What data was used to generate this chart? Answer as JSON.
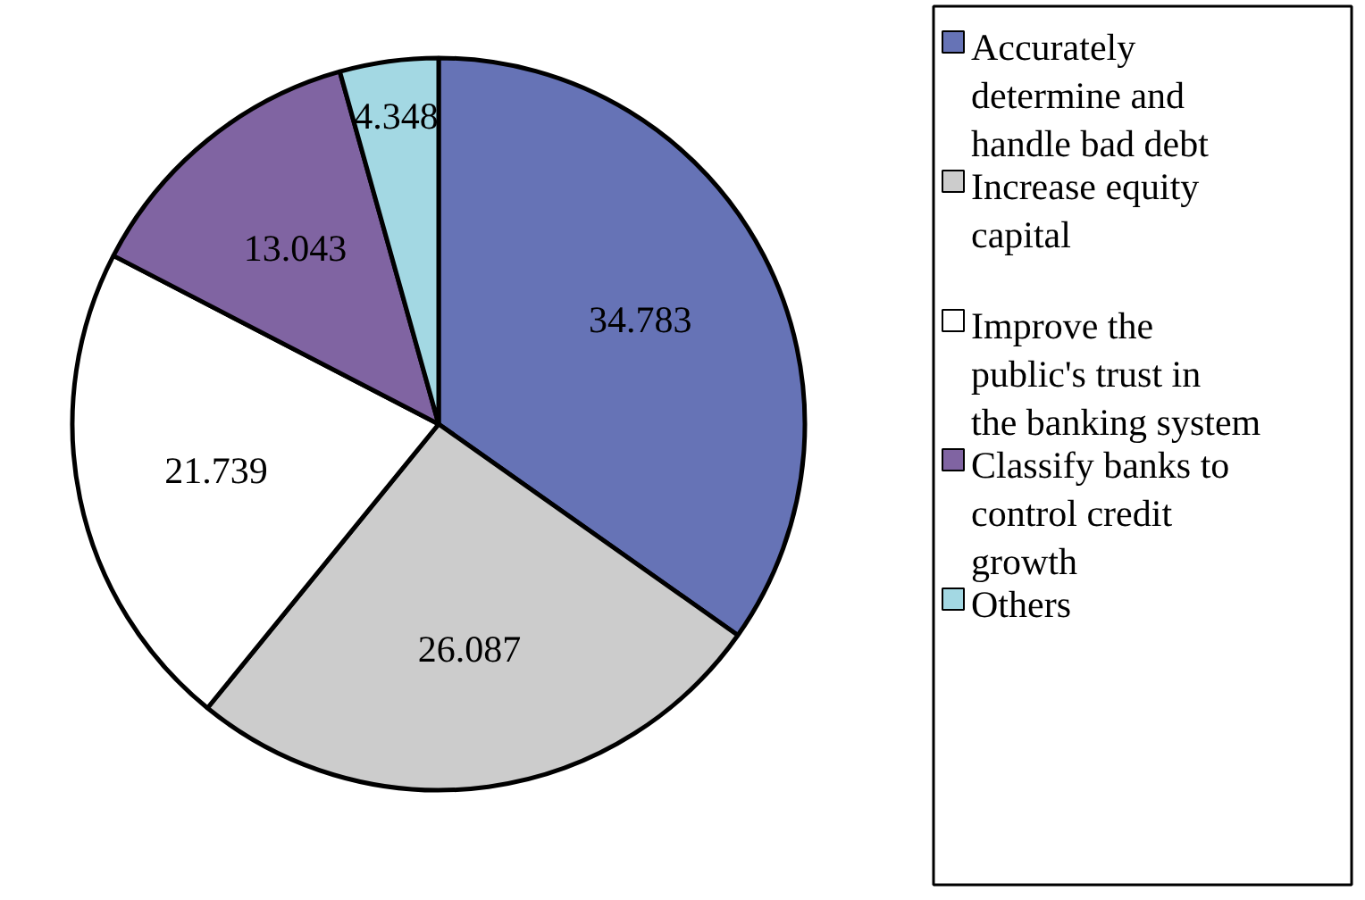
{
  "chart_data": {
    "type": "pie",
    "categories": [
      "Accurately determine and handle bad debt",
      "Increase equity capital",
      "Improve the public's trust in the banking system",
      "Classify banks to control credit growth",
      "Others"
    ],
    "values": [
      34.783,
      26.087,
      21.739,
      13.043,
      4.348
    ],
    "colors": [
      "#6673b6",
      "#cccccc",
      "#ffffff",
      "#8064a2",
      "#a3d8e3"
    ],
    "data_labels": true,
    "legend": "right"
  }
}
